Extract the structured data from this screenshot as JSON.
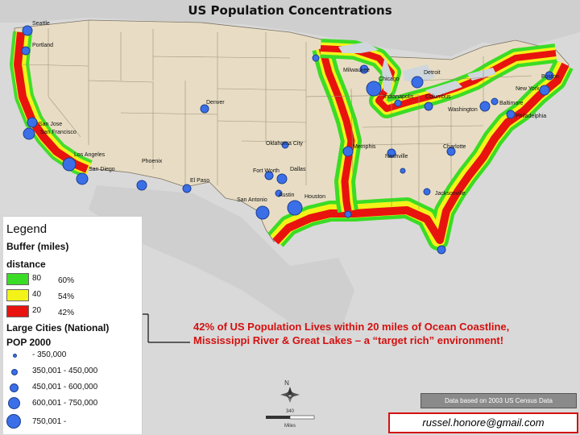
{
  "title": "US Population Concentrations",
  "legend": {
    "heading": "Legend",
    "buffer_heading": "Buffer (miles)",
    "distance_label": "distance",
    "buffers": [
      {
        "distance": "80",
        "color": "#3bdc25",
        "percent": "60%"
      },
      {
        "distance": "40",
        "color": "#f3f319",
        "percent": "54%"
      },
      {
        "distance": "20",
        "color": "#e8130f",
        "percent": "42%"
      }
    ],
    "cities_heading": "Large Cities (National)",
    "pop_heading": "POP 2000",
    "pop_classes": [
      "- 350,000",
      "350,001 - 450,000",
      "450,001 - 600,000",
      "600,001 - 750,000",
      "750,001 -"
    ]
  },
  "note": "42% of US Population Lives within 20 miles of Ocean Coastline, Mississippi River & Great Lakes – a “target rich” environment!",
  "source": "Data based on 2003 US Census Data",
  "email": "russel.honore@gmail.com",
  "scale": {
    "label": "340",
    "units": "Miles"
  },
  "compass": "N",
  "city_labels": [
    "Seattle",
    "Portland",
    "San Jose",
    "San Francisco",
    "Los Angeles",
    "San Diego",
    "Phoenix",
    "El Paso",
    "Denver",
    "Oklahoma City",
    "Fort Worth",
    "Dallas",
    "Austin",
    "San Antonio",
    "Houston",
    "Memphis",
    "Nashville",
    "Milwaukee",
    "Chicago",
    "Detroit",
    "Indianapolis",
    "Columbus",
    "Washington",
    "Baltimore",
    "Philadelphia",
    "New York",
    "Boston",
    "Charlotte",
    "Jacksonville"
  ],
  "colors": {
    "land": "#e8ddc4",
    "water": "#dcdcdc",
    "state_lines": "#9a8f7a",
    "city_dot": "#3a6fe8",
    "accent_red": "#d3100f"
  }
}
